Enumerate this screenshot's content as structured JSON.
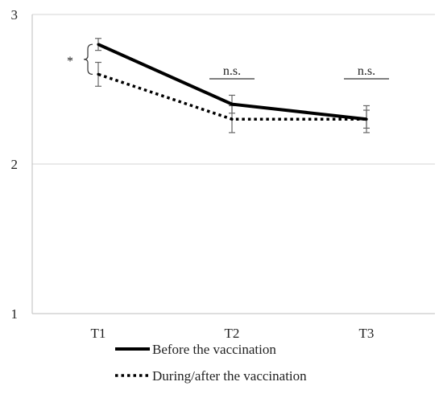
{
  "chart_data": {
    "type": "line",
    "categories": [
      "T1",
      "T2",
      "T3"
    ],
    "ylim": [
      1,
      3
    ],
    "yticks": [
      1,
      2,
      3
    ],
    "grid": true,
    "legend_position": "bottom",
    "series": [
      {
        "name": "Before the vaccination",
        "style": "solid",
        "color": "#000000",
        "values": [
          2.8,
          2.4,
          2.3
        ],
        "error": [
          0.04,
          0.06,
          0.06
        ]
      },
      {
        "name": "During/after the vaccination",
        "style": "dotted",
        "color": "#000000",
        "values": [
          2.6,
          2.3,
          2.3
        ],
        "error": [
          0.08,
          0.09,
          0.09
        ]
      }
    ],
    "annotations": [
      {
        "category": "T1",
        "text": "*",
        "kind": "bracket"
      },
      {
        "category": "T2",
        "text": "n.s.",
        "kind": "line"
      },
      {
        "category": "T3",
        "text": "n.s.",
        "kind": "line"
      }
    ]
  }
}
